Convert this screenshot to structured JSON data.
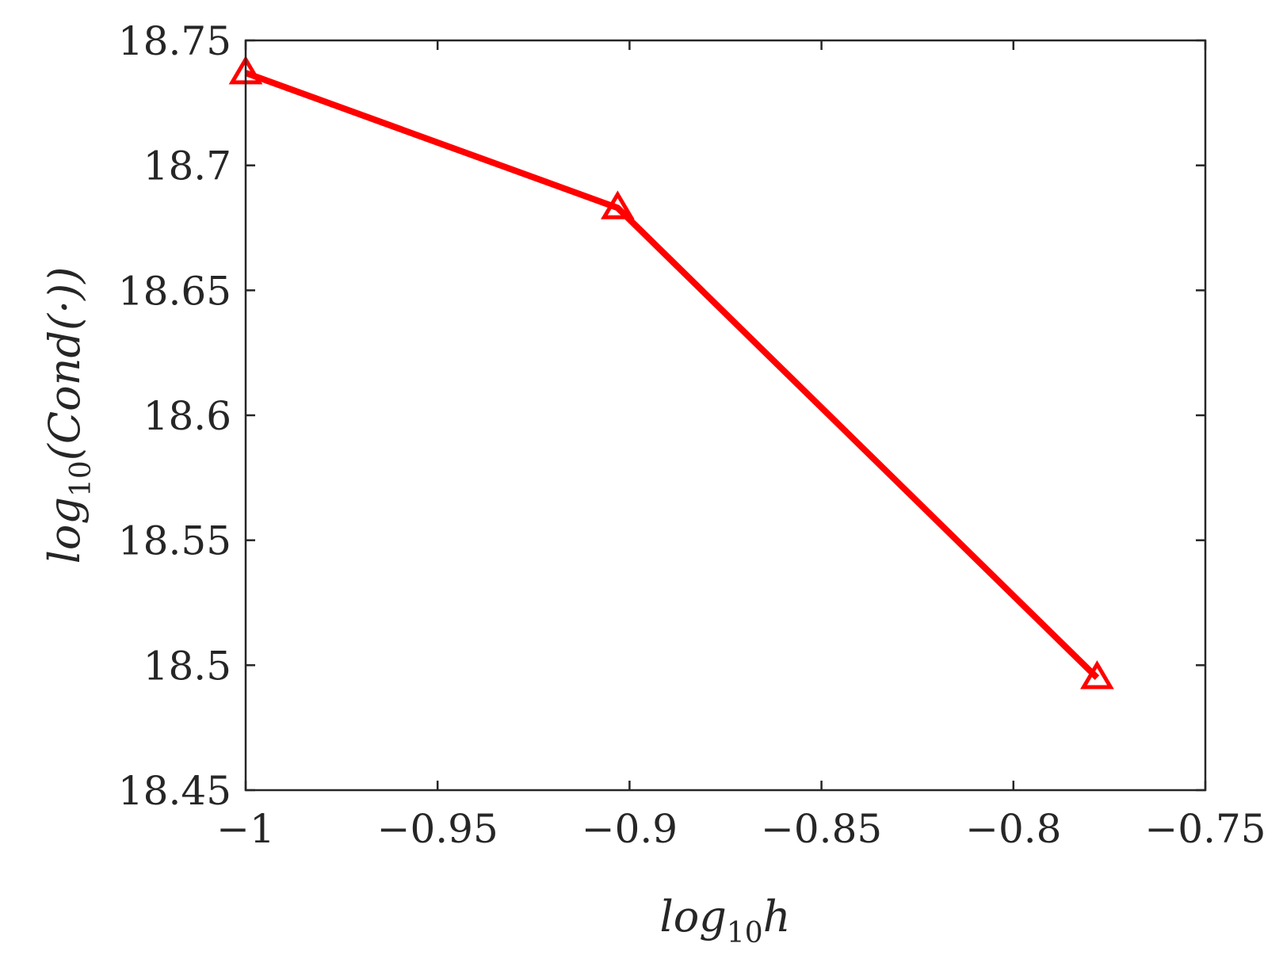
{
  "chart_data": {
    "type": "line",
    "title": "",
    "xlabel": {
      "main": "log",
      "sub": "10",
      "tail": "h"
    },
    "ylabel": {
      "main": "log",
      "sub": "10",
      "tail": "(Cond(·))"
    },
    "xlim": [
      -1,
      -0.75
    ],
    "ylim": [
      18.45,
      18.75
    ],
    "xticks": [
      -1,
      -0.95,
      -0.9,
      -0.85,
      -0.8,
      -0.75
    ],
    "xtick_labels": [
      "−1",
      "−0.95",
      "−0.9",
      "−0.85",
      "−0.8",
      "−0.75"
    ],
    "yticks": [
      18.45,
      18.5,
      18.55,
      18.6,
      18.65,
      18.7,
      18.75
    ],
    "ytick_labels": [
      "18.45",
      "18.5",
      "18.55",
      "18.6",
      "18.65",
      "18.7",
      "18.75"
    ],
    "grid": false,
    "series": [
      {
        "x": [
          -1,
          -0.9031,
          -0.7782
        ],
        "y": [
          18.737,
          18.683,
          18.495
        ],
        "color": "#ff0000",
        "marker": "triangle"
      }
    ]
  }
}
